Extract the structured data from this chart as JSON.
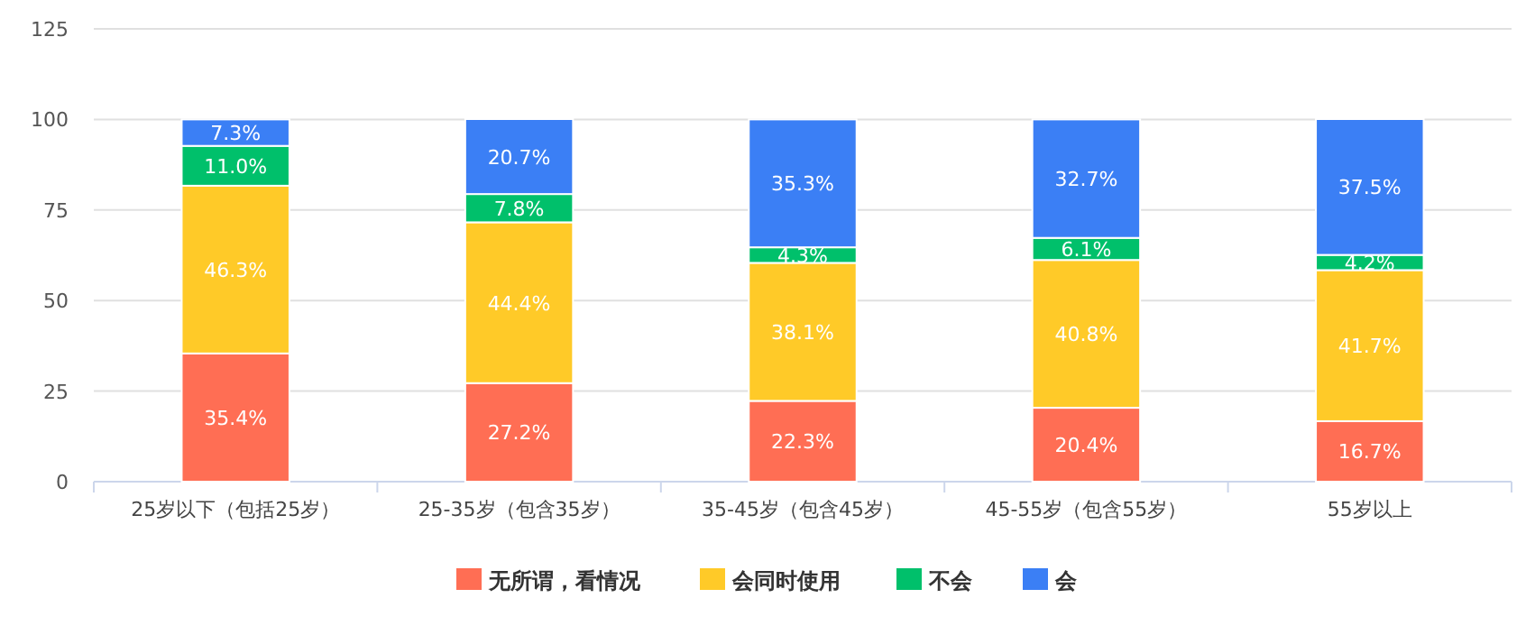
{
  "chart_data": {
    "type": "bar",
    "stacked": true,
    "categories": [
      "25岁以下（包括25岁）",
      "25-35岁（包含35岁）",
      "35-45岁（包含45岁）",
      "45-55岁（包含55岁）",
      "55岁以上"
    ],
    "series": [
      {
        "name": "无所谓，看情况",
        "color": "#ff6e54",
        "values": [
          35.4,
          27.2,
          22.3,
          20.4,
          16.7
        ],
        "value_labels": [
          "35.4%",
          "27.2%",
          "22.3%",
          "20.4%",
          "16.7%"
        ]
      },
      {
        "name": "会同时使用",
        "color": "#ffca28",
        "values": [
          46.3,
          44.4,
          38.1,
          40.8,
          41.7
        ],
        "value_labels": [
          "46.3%",
          "44.4%",
          "38.1%",
          "40.8%",
          "41.7%"
        ]
      },
      {
        "name": "不会",
        "color": "#00c06b",
        "values": [
          11.0,
          7.8,
          4.3,
          6.1,
          4.2
        ],
        "value_labels": [
          "11.0%",
          "7.8%",
          "4.3%",
          "6.1%",
          "4.2%"
        ]
      },
      {
        "name": "会",
        "color": "#3b7ff5",
        "values": [
          7.3,
          20.7,
          35.3,
          32.7,
          37.5
        ],
        "value_labels": [
          "7.3%",
          "20.7%",
          "35.3%",
          "32.7%",
          "37.5%"
        ]
      }
    ],
    "ylim": [
      0,
      125
    ],
    "yticks": [
      0,
      25,
      50,
      75,
      100,
      125
    ],
    "grid": "y",
    "legend": "bottom"
  }
}
